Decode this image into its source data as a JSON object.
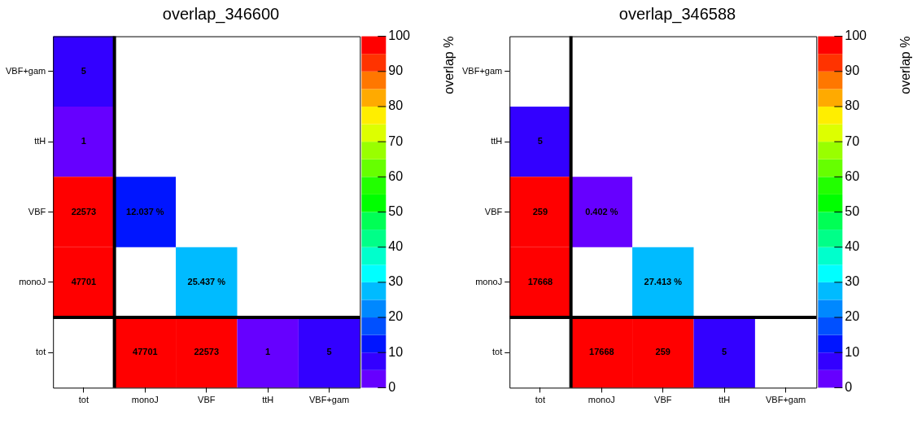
{
  "chart_data": [
    {
      "type": "heatmap",
      "title": "overlap_346600",
      "categories": [
        "tot",
        "monoJ",
        "VBF",
        "ttH",
        "VBF+gam"
      ],
      "y_categories": [
        "VBF+gam",
        "ttH",
        "VBF",
        "monoJ",
        "tot"
      ],
      "cells": [
        [
          5,
          null,
          null,
          null,
          null
        ],
        [
          1,
          null,
          null,
          null,
          null
        ],
        [
          22573,
          12.037,
          null,
          null,
          null
        ],
        [
          47701,
          null,
          25.437,
          null,
          null
        ],
        [
          null,
          47701,
          22573,
          1,
          5
        ]
      ],
      "cell_labels": [
        [
          "5",
          null,
          null,
          null,
          null
        ],
        [
          "1",
          null,
          null,
          null,
          null
        ],
        [
          "22573",
          "12.037 %",
          null,
          null,
          null
        ],
        [
          "47701",
          null,
          "25.437 %",
          null,
          null
        ],
        [
          null,
          "47701",
          "22573",
          "1",
          "5"
        ]
      ],
      "clabel": "overlap %",
      "clim": [
        0,
        100
      ],
      "cticks": [
        0,
        10,
        20,
        30,
        40,
        50,
        60,
        70,
        80,
        90,
        100
      ]
    },
    {
      "type": "heatmap",
      "title": "overlap_346588",
      "categories": [
        "tot",
        "monoJ",
        "VBF",
        "ttH",
        "VBF+gam"
      ],
      "y_categories": [
        "VBF+gam",
        "ttH",
        "VBF",
        "monoJ",
        "tot"
      ],
      "cells": [
        [
          null,
          null,
          null,
          null,
          null
        ],
        [
          5,
          null,
          null,
          null,
          null
        ],
        [
          259,
          0.402,
          null,
          null,
          null
        ],
        [
          17668,
          null,
          27.413,
          null,
          null
        ],
        [
          null,
          17668,
          259,
          5,
          null
        ]
      ],
      "cell_labels": [
        [
          null,
          null,
          null,
          null,
          null
        ],
        [
          "5",
          null,
          null,
          null,
          null
        ],
        [
          "259",
          "0.402 %",
          null,
          null,
          null
        ],
        [
          "17668",
          null,
          "27.413 %",
          null,
          null
        ],
        [
          null,
          "17668",
          "259",
          "5",
          null
        ]
      ],
      "clabel": "overlap %",
      "clim": [
        0,
        100
      ],
      "cticks": [
        0,
        10,
        20,
        30,
        40,
        50,
        60,
        70,
        80,
        90,
        100
      ]
    }
  ]
}
